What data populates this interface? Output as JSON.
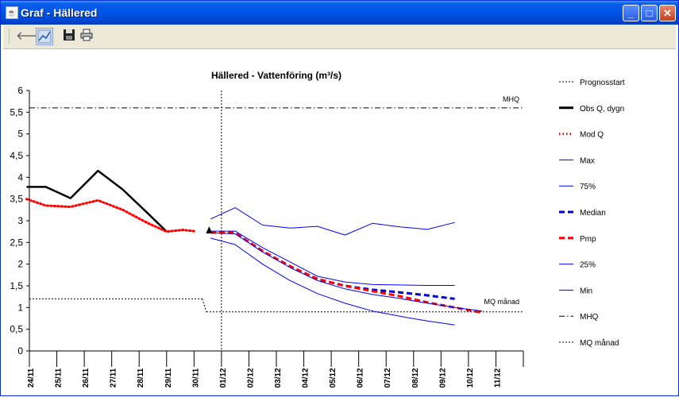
{
  "window": {
    "title": "Graf - Hällered"
  },
  "toolbar": {
    "buttons": [
      "back-arrow-icon",
      "chart-icon",
      "save-icon",
      "print-icon"
    ]
  },
  "chart_data": {
    "type": "line",
    "title": "Hällered - Vattenföring (m³/s)",
    "xlabel": "",
    "ylabel": "",
    "ylim": [
      0,
      6
    ],
    "yticks": [
      "0",
      "0,5",
      "1",
      "1,5",
      "2",
      "2,5",
      "3",
      "3,5",
      "4",
      "4,5",
      "5",
      "5,5",
      "6"
    ],
    "categories": [
      "24/11",
      "25/11",
      "26/11",
      "27/11",
      "28/11",
      "29/11",
      "30/11",
      "01/12",
      "02/12",
      "03/12",
      "04/12",
      "05/12",
      "06/12",
      "07/12",
      "08/12",
      "09/12",
      "10/12",
      "11/12"
    ],
    "legend_placement": "right",
    "prognosstart_x": 7.0,
    "mhq_value": 5.6,
    "mhq_label": "MHQ",
    "mq_label": "MQ månad",
    "mq_segments": [
      [
        [
          0,
          1.2
        ],
        [
          6.3,
          1.2
        ]
      ],
      [
        [
          6.3,
          1.2
        ],
        [
          6.45,
          0.9
        ]
      ],
      [
        [
          6.45,
          0.9
        ],
        [
          18,
          0.9
        ]
      ]
    ],
    "series": [
      {
        "name": "Obs Q, dygn",
        "color": "#000000",
        "style": "solid",
        "width": 2.5,
        "x": [
          -0.1,
          0.6,
          1.5,
          2.5,
          3.4,
          4.3,
          5.0
        ],
        "y": [
          3.78,
          3.78,
          3.52,
          4.15,
          3.72,
          3.18,
          2.75
        ]
      },
      {
        "name": "Mod Q",
        "color": "#ff0000",
        "style": "dot",
        "width": 3,
        "x": [
          -0.1,
          0.6,
          1.5,
          2.5,
          3.4,
          4.3,
          5.0,
          5.6,
          6.0
        ],
        "y": [
          3.5,
          3.35,
          3.32,
          3.47,
          3.25,
          2.95,
          2.75,
          2.79,
          2.76
        ]
      },
      {
        "name": "Max",
        "color": "#0000ff",
        "style": "solid",
        "width": 1,
        "x": [
          6.6,
          7.5,
          8.5,
          9.5,
          10.5,
          11.5,
          12.5,
          13.5,
          14.5,
          15.5
        ],
        "y": [
          3.04,
          3.3,
          2.9,
          2.83,
          2.87,
          2.67,
          2.94,
          2.86,
          2.8,
          2.96
        ]
      },
      {
        "name": "75%",
        "color": "#0000ff",
        "style": "solid",
        "width": 1,
        "x": [
          6.6,
          7.5,
          8.5,
          9.5,
          10.5,
          11.5,
          12.5,
          13.5,
          14.5,
          15.5
        ],
        "y": [
          2.76,
          2.76,
          2.38,
          2.05,
          1.72,
          1.59,
          1.53,
          1.52,
          1.51,
          1.51
        ]
      },
      {
        "name": "Median",
        "color": "#0000cc",
        "style": "dash",
        "width": 3,
        "x": [
          6.6,
          7.5,
          8.5,
          9.5,
          10.5,
          11.5,
          12.5,
          13.5,
          14.5,
          15.5
        ],
        "y": [
          2.73,
          2.72,
          2.3,
          1.95,
          1.65,
          1.5,
          1.41,
          1.35,
          1.28,
          1.2
        ]
      },
      {
        "name": "Pmp",
        "color": "#ff0000",
        "style": "dash",
        "width": 3,
        "x": [
          6.6,
          7.5,
          8.5,
          9.5,
          10.5,
          11.5,
          12.5,
          13.5,
          14.5,
          15.5,
          16.5
        ],
        "y": [
          2.73,
          2.72,
          2.3,
          1.95,
          1.66,
          1.5,
          1.38,
          1.26,
          1.12,
          1.0,
          0.88
        ]
      },
      {
        "name": "25%",
        "color": "#0000ff",
        "style": "solid",
        "width": 1,
        "x": [
          6.6,
          7.5,
          8.5,
          9.5,
          10.5,
          11.5,
          12.5,
          13.5,
          14.5,
          15.5,
          16.5
        ],
        "y": [
          2.72,
          2.7,
          2.28,
          1.92,
          1.62,
          1.43,
          1.3,
          1.21,
          1.1,
          1.0,
          0.92
        ]
      },
      {
        "name": "Min",
        "color": "#0000ff",
        "style": "solid",
        "width": 1,
        "x": [
          6.6,
          7.5,
          8.5,
          9.5,
          10.5,
          11.5,
          12.5,
          13.5,
          14.5,
          15.5
        ],
        "y": [
          2.6,
          2.45,
          2.0,
          1.62,
          1.32,
          1.1,
          0.92,
          0.8,
          0.69,
          0.6
        ]
      }
    ],
    "legend": [
      {
        "name": "Prognosstart",
        "style": "dotted",
        "color": "#000000"
      },
      {
        "name": "Obs Q, dygn",
        "style": "solid",
        "color": "#000000",
        "width": 3
      },
      {
        "name": "Mod Q",
        "style": "dot",
        "color": "#ff0000",
        "width": 3
      },
      {
        "name": "Max",
        "style": "solid",
        "color": "#0000ff",
        "width": 1
      },
      {
        "name": "75%",
        "style": "solid",
        "color": "#0000ff",
        "width": 1
      },
      {
        "name": "Median",
        "style": "dash",
        "color": "#0000cc",
        "width": 3
      },
      {
        "name": "Pmp",
        "style": "dash",
        "color": "#ff0000",
        "width": 3
      },
      {
        "name": "25%",
        "style": "solid",
        "color": "#0000ff",
        "width": 1
      },
      {
        "name": "Min",
        "style": "solid",
        "color": "#0000ff",
        "width": 1
      },
      {
        "name": "MHQ",
        "style": "dashdot",
        "color": "#000000",
        "width": 1
      },
      {
        "name": "MQ månad",
        "style": "dotted",
        "color": "#000000",
        "width": 1
      }
    ]
  }
}
